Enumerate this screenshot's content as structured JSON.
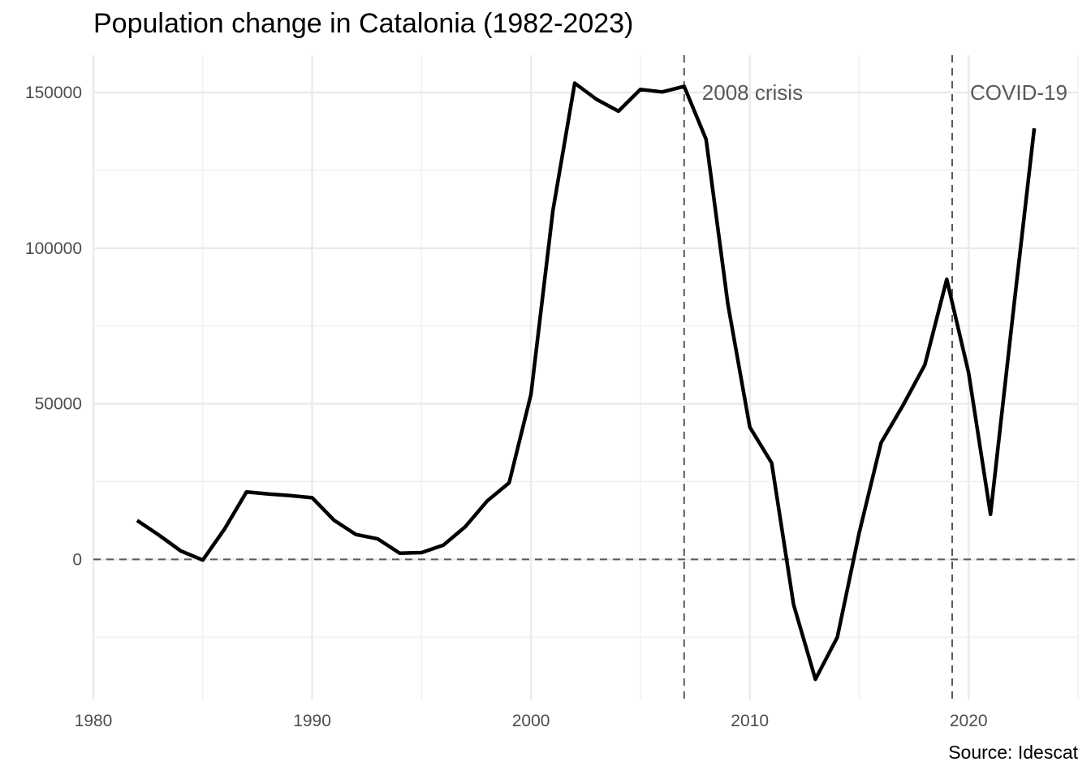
{
  "chart_data": {
    "type": "line",
    "title": "Population change in Catalonia (1982-2023)",
    "caption": "Source: Idescat",
    "xlabel": "",
    "ylabel": "",
    "xlim": [
      1980,
      2025
    ],
    "ylim": [
      -45000,
      162000
    ],
    "x_ticks": [
      1980,
      1990,
      2000,
      2010,
      2020
    ],
    "x_tick_labels": [
      "1980",
      "1990",
      "2000",
      "2010",
      "2020"
    ],
    "y_ticks": [
      0,
      50000,
      100000,
      150000
    ],
    "y_tick_labels": [
      "0",
      "50000",
      "100000",
      "150000"
    ],
    "grid": true,
    "reference_lines": [
      {
        "axis": "y",
        "value": 0,
        "style": "dashed"
      },
      {
        "axis": "x",
        "value": 2007,
        "style": "dashed",
        "label": "2008 crisis"
      },
      {
        "axis": "x",
        "value": 2019.25,
        "style": "dashed",
        "label": "COVID-19"
      }
    ],
    "series": [
      {
        "color": "#000000",
        "x": [
          1982,
          1983,
          1984,
          1985,
          1986,
          1987,
          1988,
          1989,
          1990,
          1991,
          1992,
          1993,
          1994,
          1995,
          1996,
          1997,
          1998,
          1999,
          2000,
          2001,
          2002,
          2003,
          2004,
          2005,
          2006,
          2007,
          2008,
          2009,
          2010,
          2011,
          2012,
          2013,
          2014,
          2015,
          2016,
          2017,
          2018,
          2019,
          2020,
          2021,
          2022,
          2023
        ],
        "y": [
          12500,
          7800,
          2700,
          -200,
          9800,
          21700,
          21000,
          20500,
          19800,
          12600,
          8000,
          6600,
          2000,
          2200,
          4600,
          10500,
          18800,
          24600,
          53000,
          112000,
          153000,
          147800,
          144000,
          151000,
          150200,
          152000,
          135000,
          82000,
          42500,
          31000,
          -14500,
          -38500,
          -25000,
          8500,
          37500,
          49500,
          62500,
          90000,
          60000,
          14500,
          77000,
          138500
        ]
      }
    ]
  }
}
